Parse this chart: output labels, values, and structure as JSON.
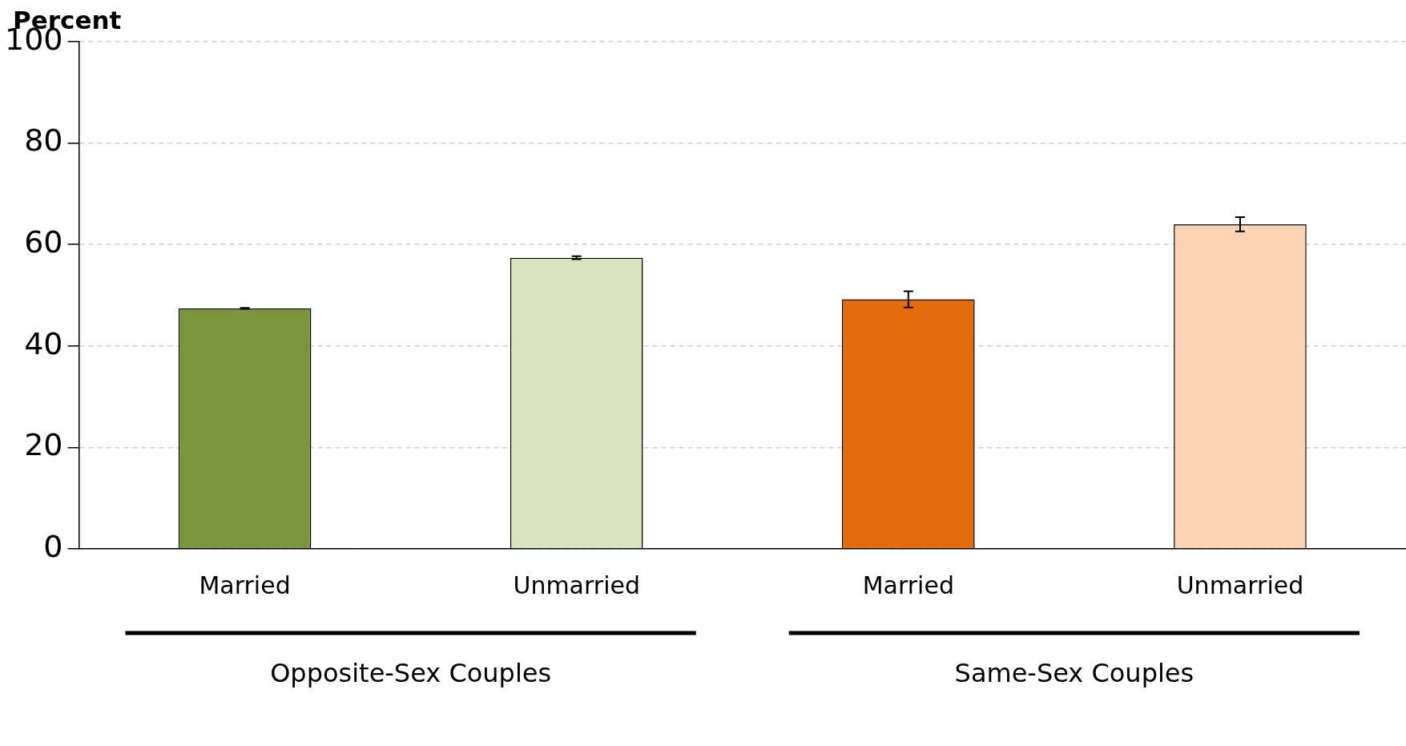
{
  "chart_data": {
    "type": "bar",
    "ylabel": "Percent",
    "categories": [
      "Married",
      "Unmarried",
      "Married",
      "Unmarried"
    ],
    "values": [
      47.4,
      57.4,
      49.2,
      64.0
    ],
    "errors": [
      0.1,
      0.3,
      1.6,
      1.4
    ],
    "colors": [
      "#7a963c",
      "#d9e4bf",
      "#e46c0a",
      "#fad4b4"
    ],
    "ylim": [
      0,
      100
    ],
    "yticks": [
      0,
      20,
      40,
      60,
      80,
      100
    ],
    "grid": "y",
    "legend": false,
    "annotations": [
      "Opposite-Sex Couples",
      "Same-Sex Couples"
    ]
  }
}
